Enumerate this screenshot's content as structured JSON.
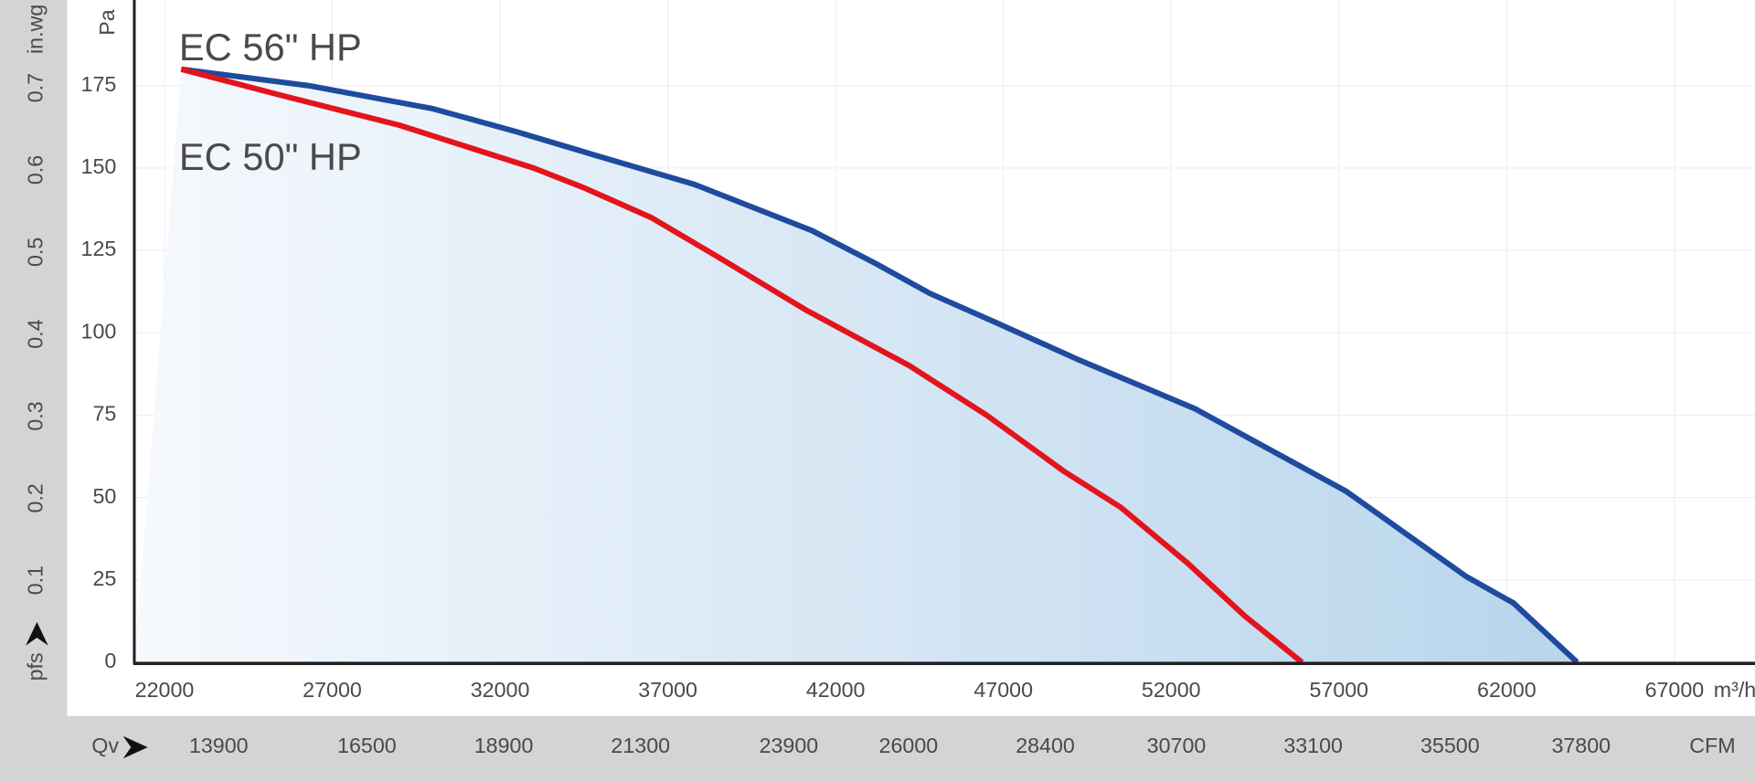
{
  "chart_data": {
    "type": "line",
    "x_unit": "m³/h",
    "x2_label": "Qv",
    "x2_unit": "CFM",
    "y_unit": "Pa",
    "y2_label": "pfs",
    "y2_unit": "in.wg",
    "xlim": [
      21100,
      69400
    ],
    "xticks": [
      22000,
      27000,
      32000,
      37000,
      42000,
      47000,
      52000,
      57000,
      62000,
      67000
    ],
    "x2lim": [
      12420,
      40850
    ],
    "x2ticks": [
      13900,
      16500,
      18900,
      21300,
      23900,
      26000,
      28400,
      30700,
      33100,
      35500,
      37800
    ],
    "ylim": [
      0,
      201
    ],
    "yticks": [
      0,
      25,
      50,
      75,
      100,
      125,
      150,
      175
    ],
    "y2lim": [
      0,
      0.807
    ],
    "y2ticks": [
      0.1,
      0.2,
      0.3,
      0.4,
      0.5,
      0.6,
      0.7
    ],
    "grid": true,
    "area_gradient": [
      "#f6f9fd",
      "#b8d5ec"
    ],
    "series": [
      {
        "name": "EC 56\" HP",
        "color": "#1f4b9e",
        "x": [
          22500,
          26300,
          30000,
          32500,
          34800,
          37800,
          41300,
          43200,
          44800,
          46800,
          49200,
          52700,
          54500,
          57200,
          60800,
          62200,
          64100
        ],
        "values": [
          180,
          175,
          168,
          161,
          154,
          145,
          131,
          121,
          112,
          103,
          92,
          77,
          67,
          52,
          26,
          18,
          0
        ]
      },
      {
        "name": "EC 50\" HP",
        "color": "#e3141c",
        "x": [
          22500,
          25500,
          29000,
          33000,
          34500,
          36500,
          38500,
          39800,
          41100,
          44200,
          46500,
          48800,
          50500,
          52500,
          54200,
          55900
        ],
        "values": [
          180,
          172,
          163,
          150,
          144,
          135,
          123,
          115,
          107,
          90,
          75,
          58,
          47,
          30,
          14,
          0
        ]
      }
    ]
  }
}
